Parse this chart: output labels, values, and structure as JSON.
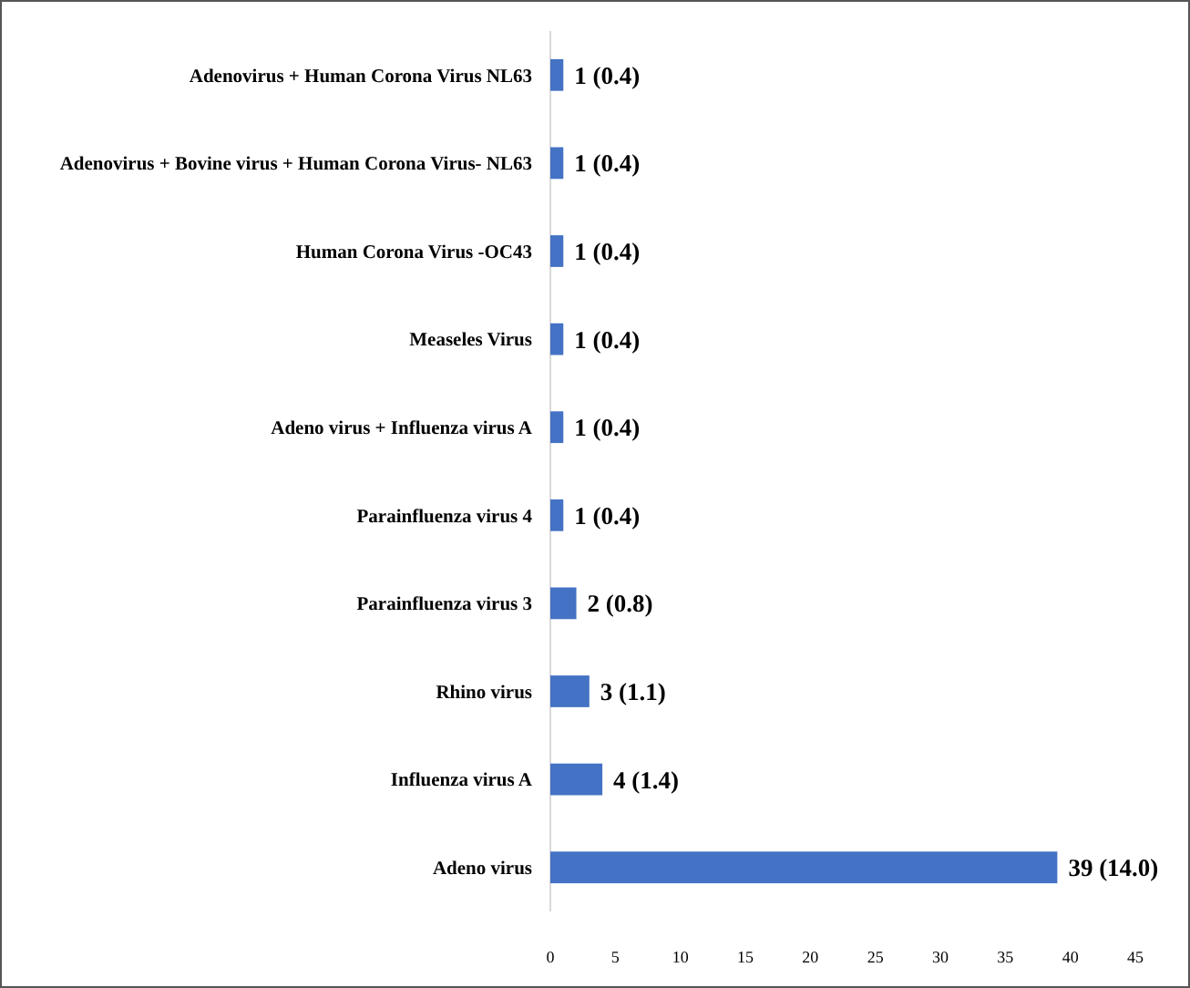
{
  "chart_data": {
    "type": "bar",
    "orientation": "horizontal",
    "categories": [
      "Adenovirus + Human Corona Virus NL63",
      "Adenovirus + Bovine virus + Human Corona Virus- NL63",
      "Human Corona Virus -OC43",
      "Measeles Virus",
      "Adeno virus + Influenza virus A",
      "Parainfluenza virus 4",
      "Parainfluenza virus 3",
      "Rhino virus",
      "Influenza virus A",
      "Adeno virus"
    ],
    "values": [
      1,
      1,
      1,
      1,
      1,
      1,
      2,
      3,
      4,
      39
    ],
    "value_labels": [
      "1 (0.4)",
      "1 (0.4)",
      "1 (0.4)",
      "1 (0.4)",
      "1 (0.4)",
      "1 (0.4)",
      "2 (0.8)",
      "3 (1.1)",
      "4 (1.4)",
      "39 (14.0)"
    ],
    "color": "#4472c4",
    "xlim": [
      0,
      45
    ],
    "xticks": [
      0,
      5,
      10,
      15,
      20,
      25,
      30,
      35,
      40,
      45
    ],
    "grid": false
  }
}
